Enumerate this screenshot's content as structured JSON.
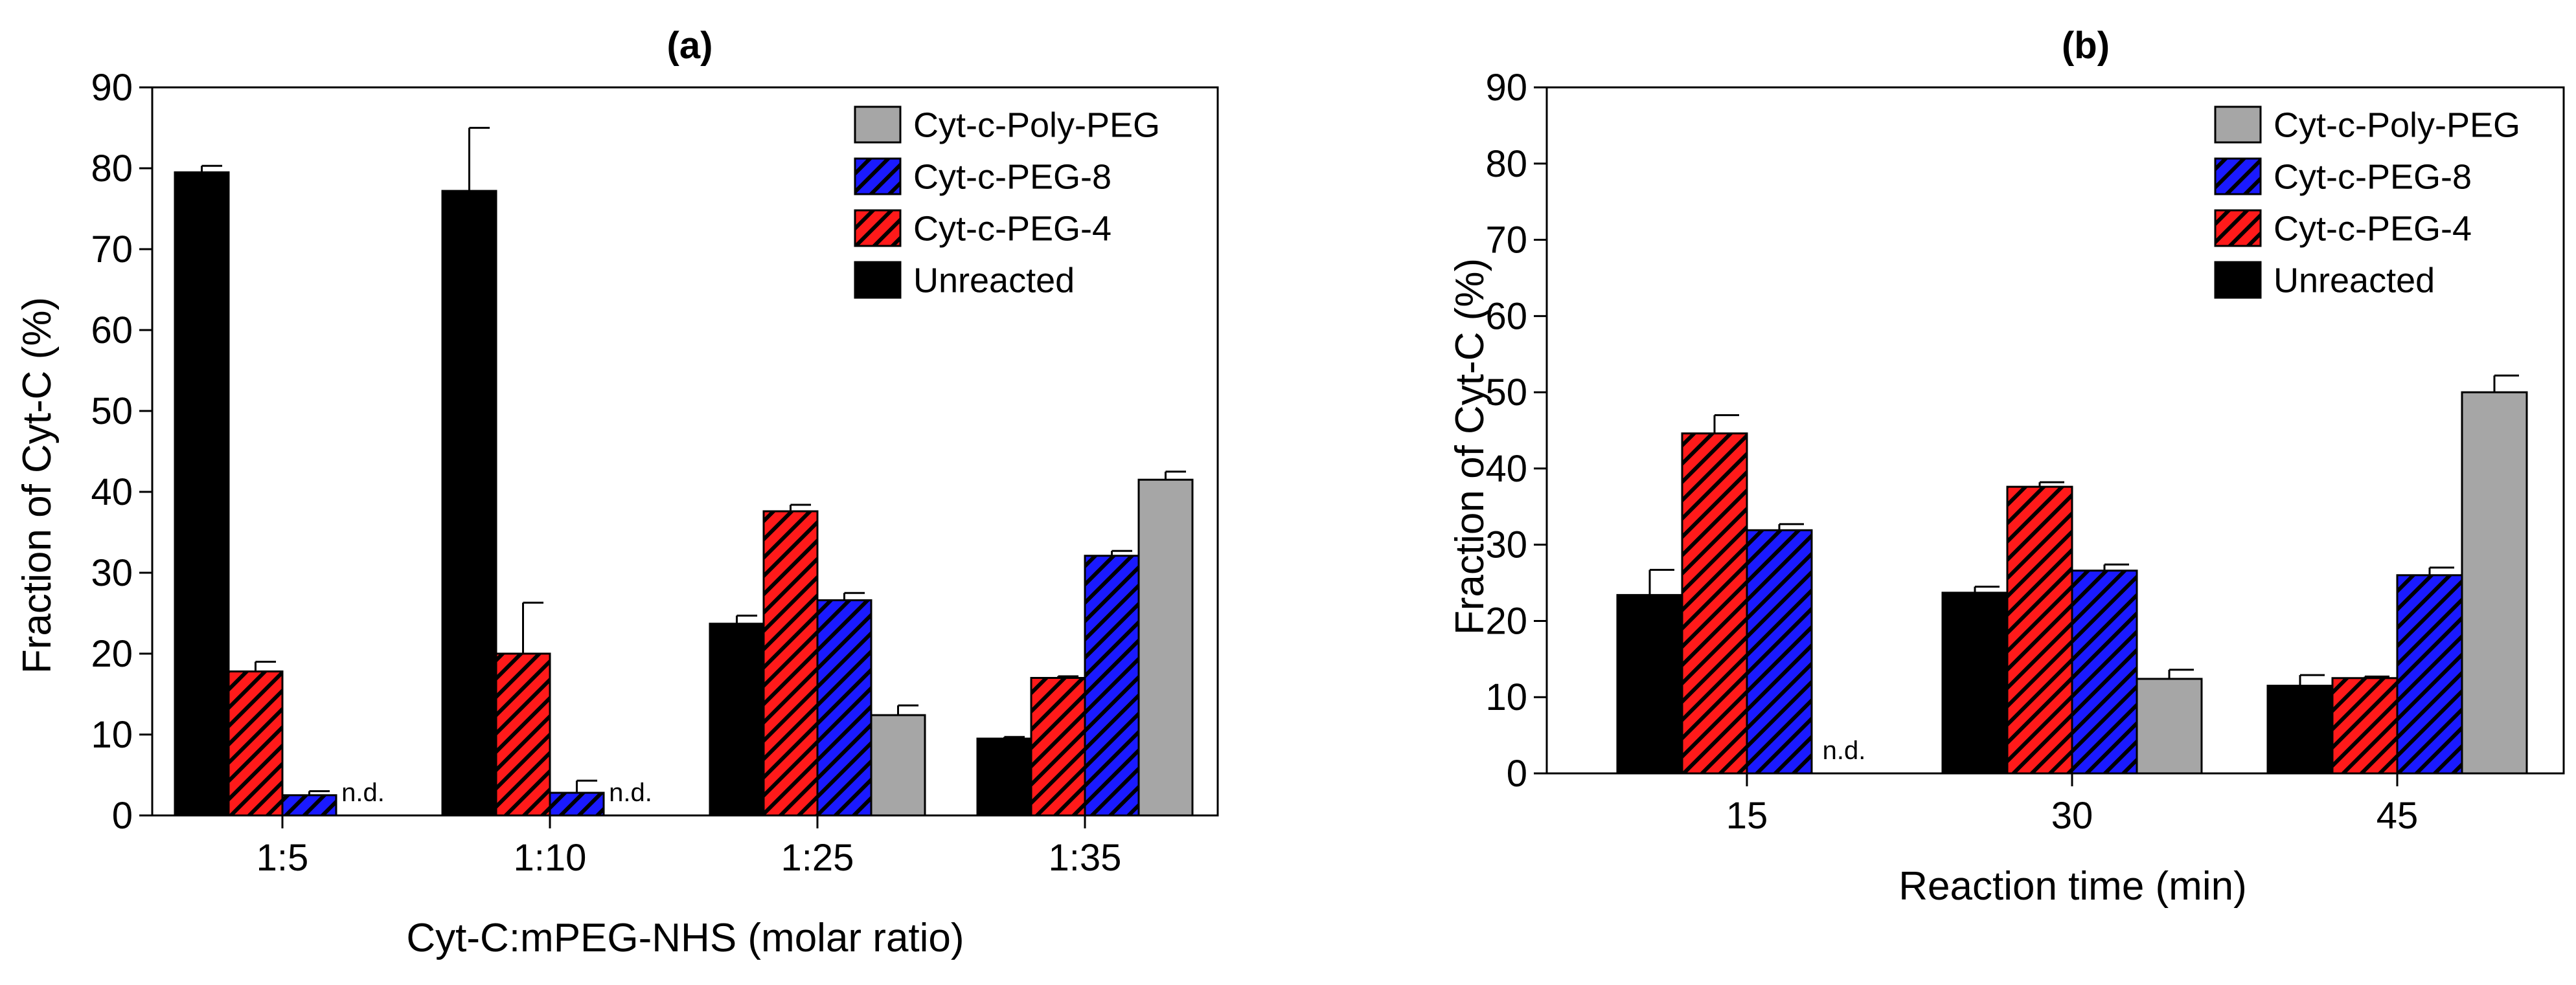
{
  "colors": {
    "unreacted": "#000000",
    "peg4": "#ff1a1a",
    "peg8": "#1a1aff",
    "polypeg": "#a6a6a6",
    "hatch": "#000000",
    "axis": "#000000"
  },
  "chart_data": [
    {
      "type": "bar",
      "title": "(a)",
      "xlabel": "Cyt-C:mPEG-NHS (molar ratio)",
      "ylabel": "Fraction of Cyt-C (%)",
      "ylim": [
        0,
        90
      ],
      "yticks": [
        0,
        10,
        20,
        30,
        40,
        50,
        60,
        70,
        80,
        90
      ],
      "categories": [
        "1:5",
        "1:10",
        "1:25",
        "1:35"
      ],
      "legend_position": "top-right",
      "legend": [
        "Cyt-c-Poly-PEG",
        "Cyt-c-PEG-8",
        "Cyt-c-PEG-4",
        "Unreacted"
      ],
      "nd_text": "n.d.",
      "series": [
        {
          "name": "Unreacted",
          "key": "unreacted",
          "values": [
            79.5,
            77.2,
            23.7,
            9.5
          ],
          "errors": [
            0.8,
            7.8,
            1.0,
            0.2
          ]
        },
        {
          "name": "Cyt-c-PEG-4",
          "key": "peg4",
          "values": [
            17.8,
            20.0,
            37.6,
            17.0
          ],
          "errors": [
            1.2,
            6.3,
            0.8,
            0.2
          ]
        },
        {
          "name": "Cyt-c-PEG-8",
          "key": "peg8",
          "values": [
            2.5,
            2.8,
            26.6,
            32.1
          ],
          "errors": [
            0.5,
            1.5,
            0.9,
            0.6
          ]
        },
        {
          "name": "Cyt-c-Poly-PEG",
          "key": "polypeg",
          "values": [
            null,
            null,
            12.4,
            41.5
          ],
          "errors": [
            0,
            0,
            1.2,
            1.0
          ]
        }
      ]
    },
    {
      "type": "bar",
      "title": "(b)",
      "xlabel": "Reaction time (min)",
      "ylabel": "Fraction of Cyt-C (%)",
      "ylim": [
        0,
        90
      ],
      "yticks": [
        0,
        10,
        20,
        30,
        40,
        50,
        60,
        70,
        80,
        90
      ],
      "categories": [
        "15",
        "30",
        "45"
      ],
      "legend_position": "top-right",
      "legend": [
        "Cyt-c-Poly-PEG",
        "Cyt-c-PEG-8",
        "Cyt-c-PEG-4",
        "Unreacted"
      ],
      "nd_text": "n.d.",
      "series": [
        {
          "name": "Unreacted",
          "key": "unreacted",
          "values": [
            23.4,
            23.7,
            11.5
          ],
          "errors": [
            3.3,
            0.8,
            1.4
          ]
        },
        {
          "name": "Cyt-c-PEG-4",
          "key": "peg4",
          "values": [
            44.6,
            37.6,
            12.5
          ],
          "errors": [
            2.4,
            0.6,
            0.2
          ]
        },
        {
          "name": "Cyt-c-PEG-8",
          "key": "peg8",
          "values": [
            31.9,
            26.6,
            26.0
          ],
          "errors": [
            0.8,
            0.8,
            1.0
          ]
        },
        {
          "name": "Cyt-c-Poly-PEG",
          "key": "polypeg",
          "values": [
            null,
            12.4,
            50.0
          ],
          "errors": [
            0,
            1.2,
            2.2
          ]
        }
      ]
    }
  ]
}
